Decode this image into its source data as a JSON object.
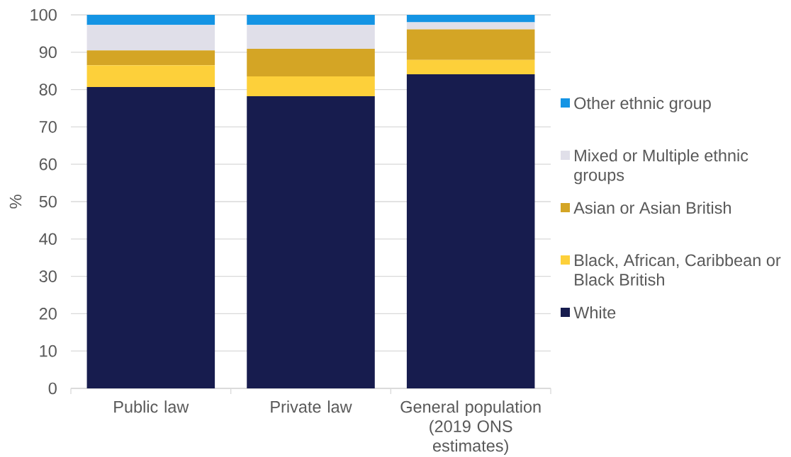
{
  "chart_data": {
    "type": "bar",
    "stacked": true,
    "ylabel": "%",
    "categories": [
      "Public law",
      "Private law",
      "General population (2019 ONS estimates)"
    ],
    "series": [
      {
        "name": "White",
        "color": "#171c4e",
        "values": [
          80.7,
          78.2,
          84.1
        ]
      },
      {
        "name": "Black, African, Caribbean or Black British",
        "color": "#fdd03a",
        "values": [
          5.8,
          5.3,
          3.8
        ]
      },
      {
        "name": "Asian or Asian British",
        "color": "#d4a525",
        "values": [
          4.0,
          7.4,
          8.2
        ]
      },
      {
        "name": "Mixed or Multiple ethnic groups",
        "color": "#e0dfe9",
        "values": [
          6.8,
          6.4,
          1.9
        ]
      },
      {
        "name": "Other ethnic group",
        "color": "#1494e4",
        "values": [
          2.7,
          2.7,
          2.0
        ]
      }
    ],
    "ylim": [
      0,
      100
    ],
    "yticks": [
      0,
      10,
      20,
      30,
      40,
      50,
      60,
      70,
      80,
      90,
      100
    ],
    "grid": "y",
    "legend": "right"
  }
}
